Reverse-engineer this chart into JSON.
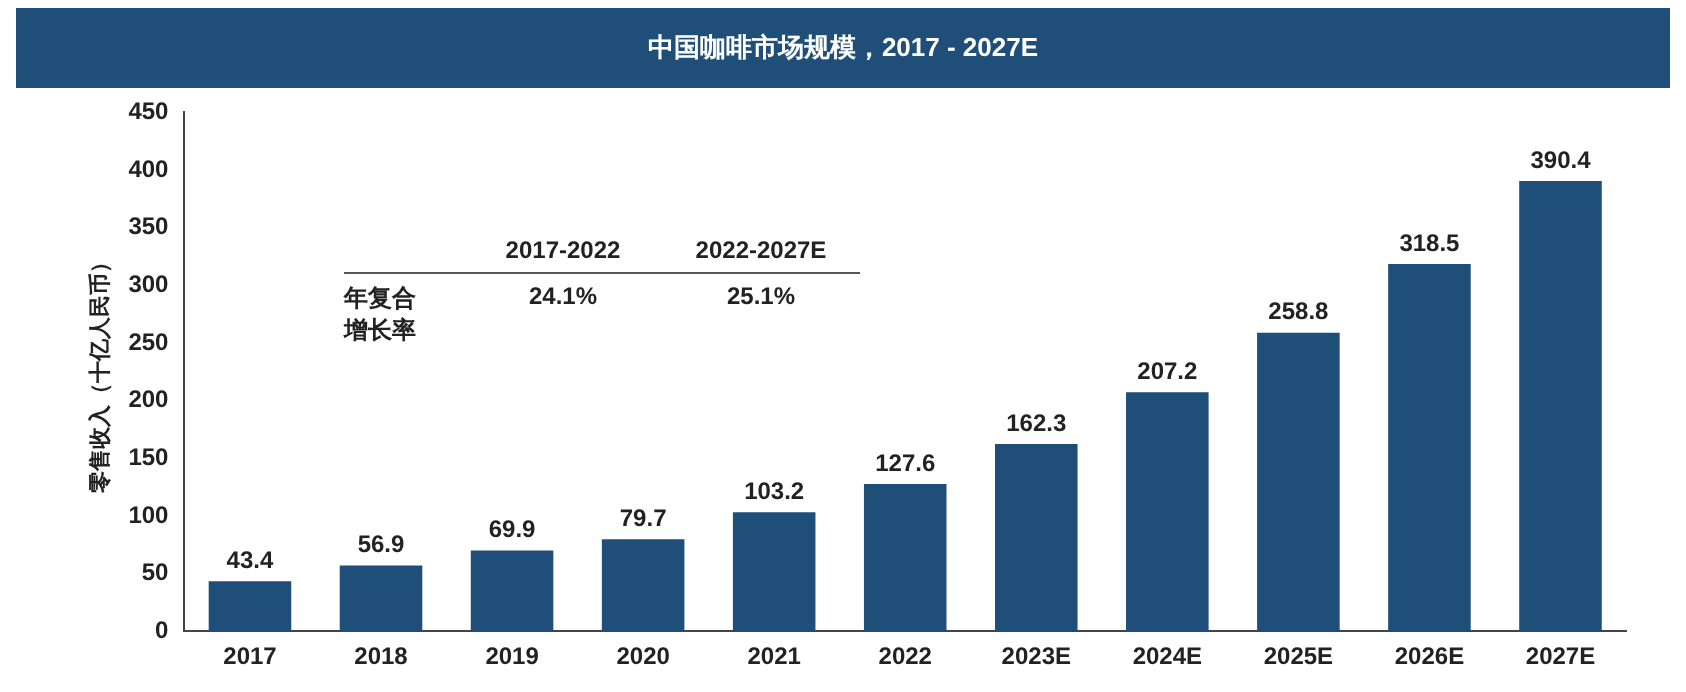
{
  "chart_data": {
    "type": "bar",
    "title": "中国咖啡市场规模，2017 - 2027E",
    "ylabel": "零售收入（十亿人民币）",
    "categories": [
      "2017",
      "2018",
      "2019",
      "2020",
      "2021",
      "2022",
      "2023E",
      "2024E",
      "2025E",
      "2026E",
      "2027E"
    ],
    "values": [
      43.4,
      56.9,
      69.9,
      79.7,
      103.2,
      127.6,
      162.3,
      207.2,
      258.8,
      318.5,
      390.4
    ],
    "color": "#1f4e79",
    "ylim": [
      0,
      450
    ],
    "yticks": [
      0,
      50,
      100,
      150,
      200,
      250,
      300,
      350,
      400,
      450
    ],
    "grid": false,
    "data_labels": true,
    "legend": false,
    "annotations": [
      "2017-2022",
      "2022-2027E",
      "年复合增长率",
      "24.1%",
      "25.1%"
    ]
  }
}
